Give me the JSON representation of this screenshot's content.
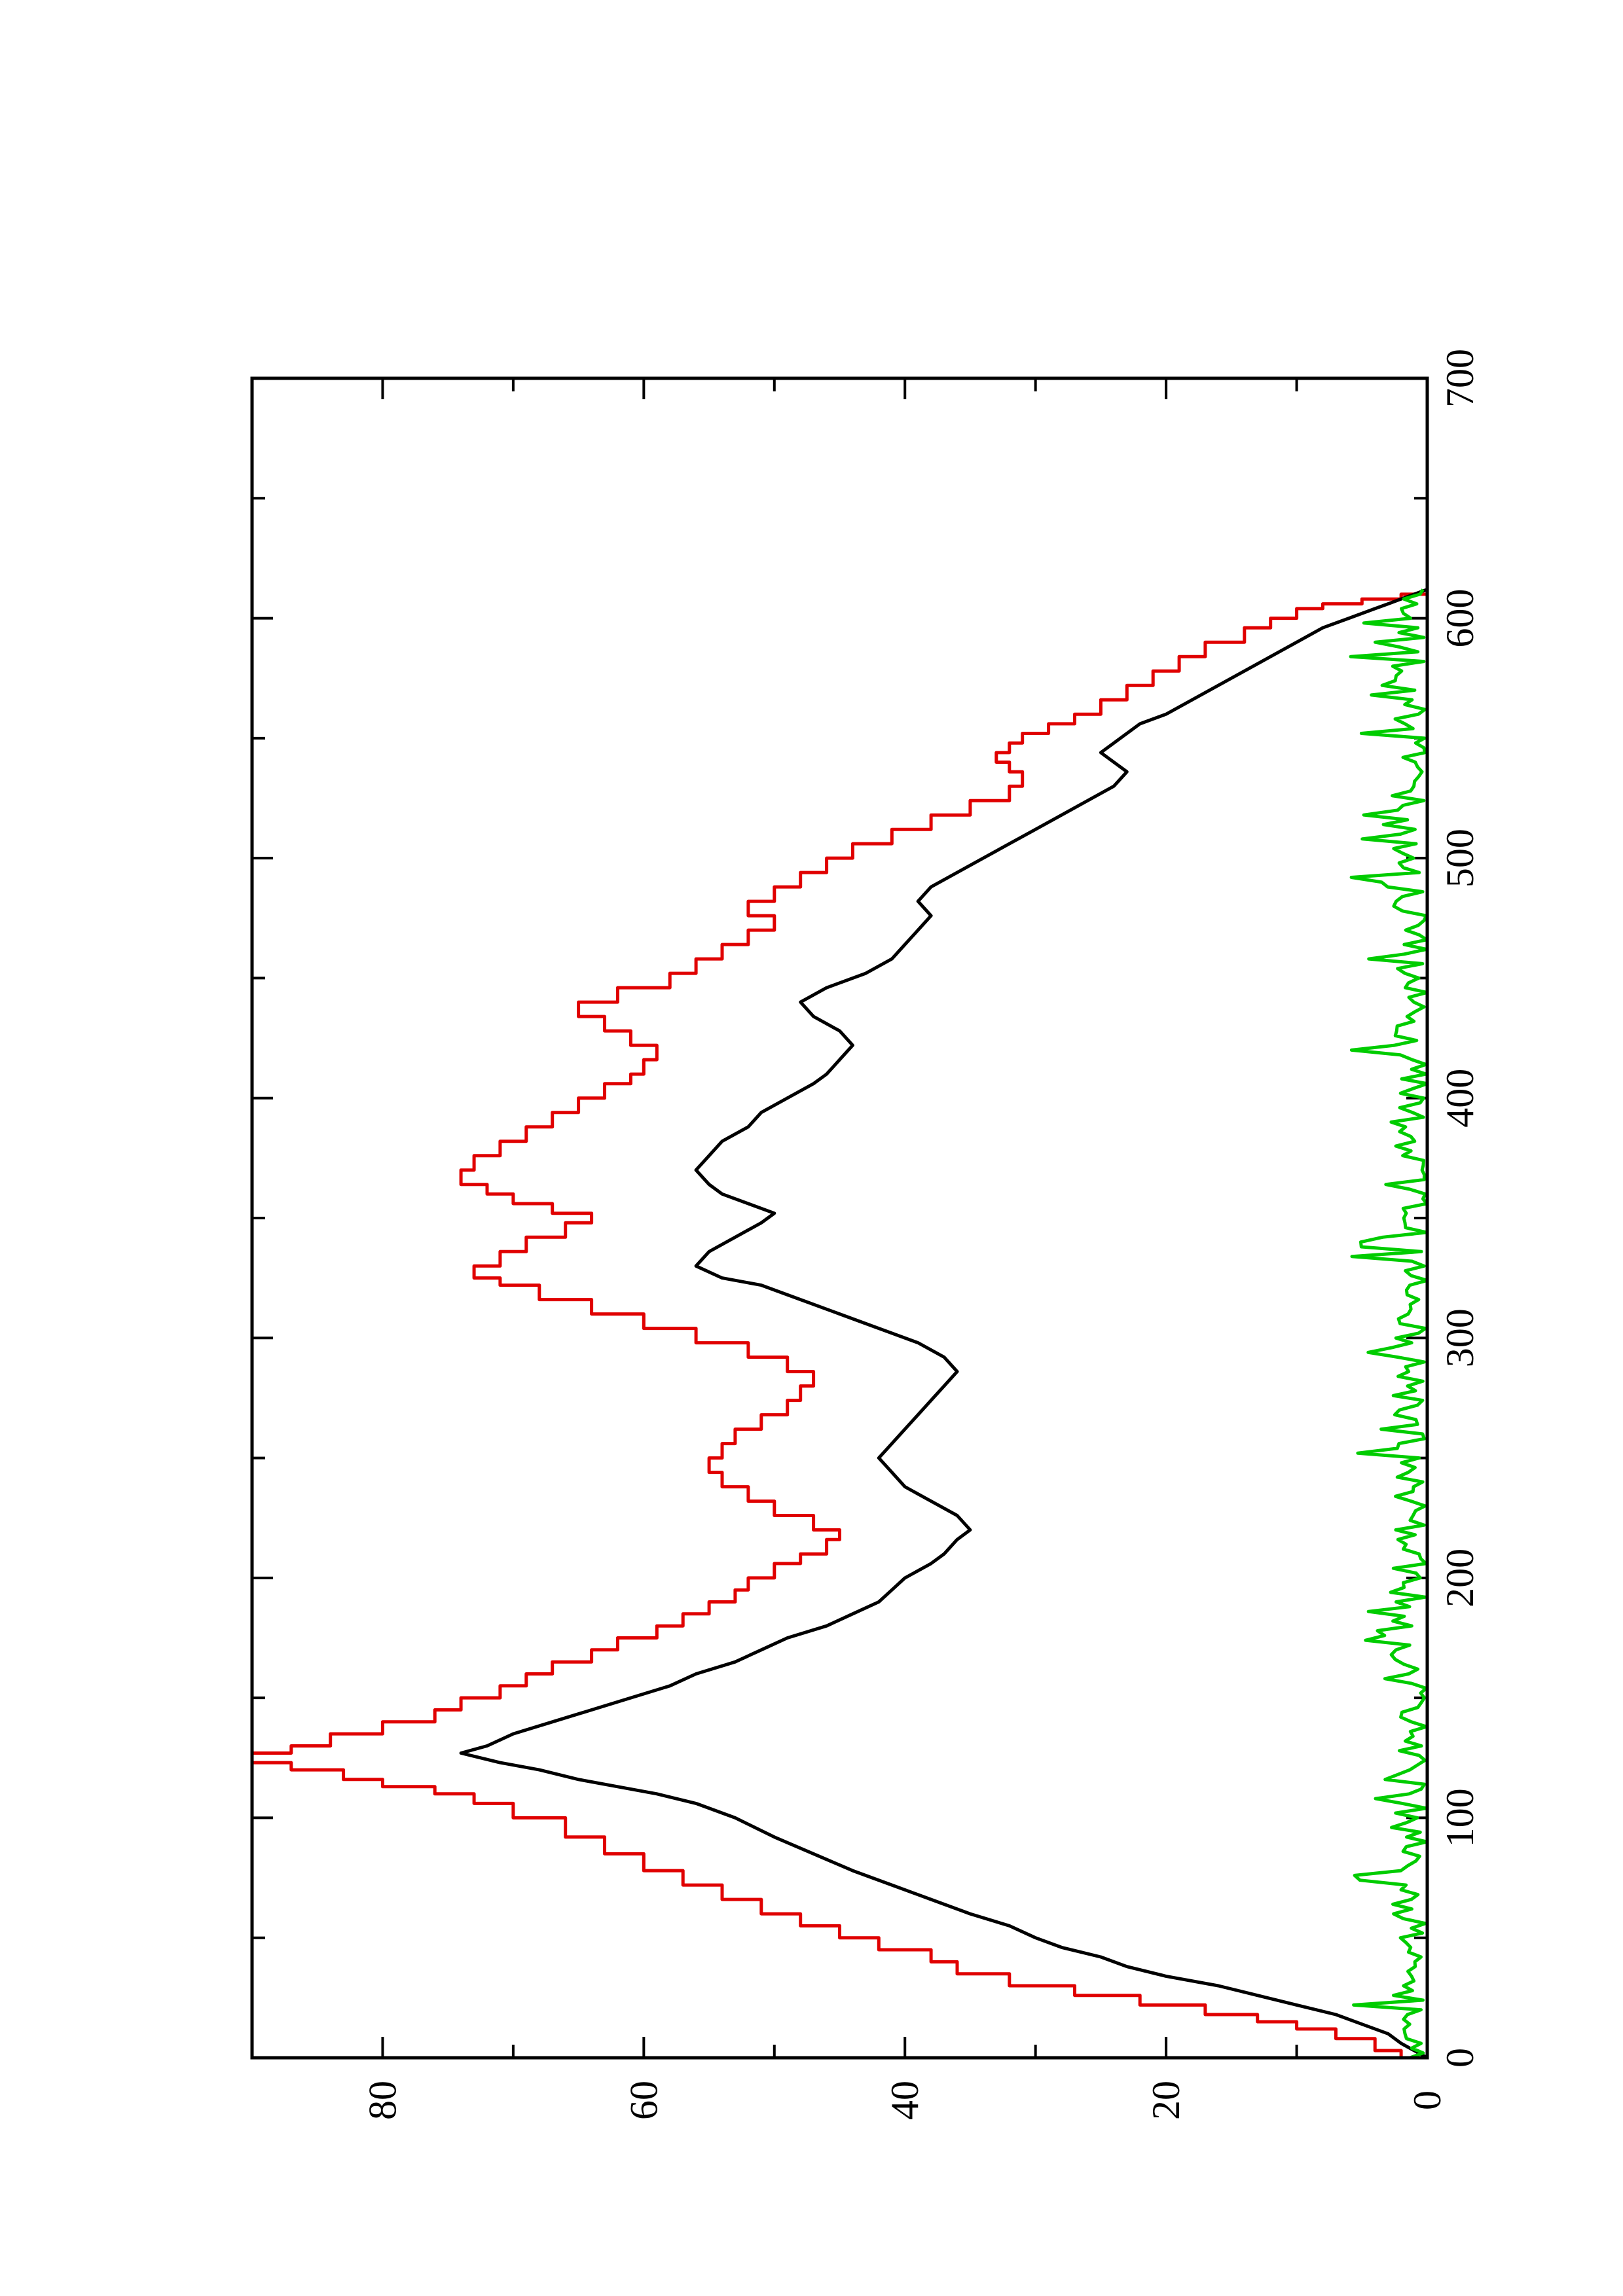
{
  "chart_data": {
    "type": "line",
    "title": "",
    "xlabel": "",
    "ylabel": "",
    "orientation": "rotated 90° counter-clockwise",
    "xlim": [
      0,
      700
    ],
    "ylim": [
      0,
      90
    ],
    "x_ticks": [
      0,
      100,
      200,
      300,
      400,
      500,
      600,
      700
    ],
    "x_tick_labels": [
      "0",
      "100",
      "200",
      "300",
      "400",
      "500",
      "600",
      "700"
    ],
    "x_minor_ticks": [
      50,
      150,
      250,
      350,
      450,
      550,
      650
    ],
    "y_ticks": [
      0,
      20,
      40,
      60,
      80
    ],
    "y_tick_labels": [
      "0",
      "20",
      "40",
      "60",
      "80"
    ],
    "y_minor_ticks": [
      10,
      30,
      50,
      70
    ],
    "grid": false,
    "series": [
      {
        "color": "#e00000",
        "step": true,
        "points": [
          [
            0,
            0
          ],
          [
            3,
            2
          ],
          [
            8,
            4
          ],
          [
            12,
            7
          ],
          [
            15,
            10
          ],
          [
            18,
            13
          ],
          [
            22,
            17
          ],
          [
            26,
            22
          ],
          [
            30,
            27
          ],
          [
            35,
            32
          ],
          [
            40,
            36
          ],
          [
            45,
            38
          ],
          [
            50,
            42
          ],
          [
            55,
            45
          ],
          [
            60,
            48
          ],
          [
            66,
            51
          ],
          [
            72,
            54
          ],
          [
            78,
            57
          ],
          [
            85,
            60
          ],
          [
            92,
            63
          ],
          [
            100,
            66
          ],
          [
            106,
            70
          ],
          [
            110,
            73
          ],
          [
            113,
            76
          ],
          [
            116,
            80
          ],
          [
            120,
            83
          ],
          [
            123,
            87
          ],
          [
            127,
            90
          ],
          [
            130,
            87
          ],
          [
            135,
            84
          ],
          [
            140,
            80
          ],
          [
            145,
            76
          ],
          [
            150,
            74
          ],
          [
            155,
            71
          ],
          [
            160,
            69
          ],
          [
            165,
            67
          ],
          [
            170,
            64
          ],
          [
            175,
            62
          ],
          [
            180,
            59
          ],
          [
            185,
            57
          ],
          [
            190,
            55
          ],
          [
            195,
            53
          ],
          [
            200,
            52
          ],
          [
            206,
            50
          ],
          [
            210,
            48
          ],
          [
            216,
            46
          ],
          [
            220,
            45
          ],
          [
            226,
            47
          ],
          [
            232,
            50
          ],
          [
            238,
            52
          ],
          [
            244,
            54
          ],
          [
            250,
            55
          ],
          [
            256,
            54
          ],
          [
            262,
            53
          ],
          [
            268,
            51
          ],
          [
            274,
            49
          ],
          [
            280,
            48
          ],
          [
            286,
            47
          ],
          [
            292,
            49
          ],
          [
            298,
            52
          ],
          [
            304,
            56
          ],
          [
            310,
            60
          ],
          [
            316,
            64
          ],
          [
            322,
            68
          ],
          [
            325,
            71
          ],
          [
            330,
            73
          ],
          [
            336,
            71
          ],
          [
            342,
            69
          ],
          [
            348,
            66
          ],
          [
            352,
            64
          ],
          [
            356,
            67
          ],
          [
            360,
            70
          ],
          [
            364,
            72
          ],
          [
            370,
            74
          ],
          [
            376,
            73
          ],
          [
            382,
            71
          ],
          [
            388,
            69
          ],
          [
            394,
            67
          ],
          [
            400,
            65
          ],
          [
            406,
            63
          ],
          [
            410,
            61
          ],
          [
            416,
            60
          ],
          [
            422,
            59
          ],
          [
            428,
            61
          ],
          [
            434,
            63
          ],
          [
            440,
            65
          ],
          [
            446,
            62
          ],
          [
            452,
            58
          ],
          [
            458,
            56
          ],
          [
            464,
            54
          ],
          [
            470,
            52
          ],
          [
            476,
            50
          ],
          [
            482,
            52
          ],
          [
            488,
            50
          ],
          [
            494,
            48
          ],
          [
            500,
            46
          ],
          [
            506,
            44
          ],
          [
            512,
            41
          ],
          [
            518,
            38
          ],
          [
            524,
            35
          ],
          [
            530,
            32
          ],
          [
            536,
            31
          ],
          [
            540,
            32
          ],
          [
            544,
            33
          ],
          [
            548,
            32
          ],
          [
            552,
            31
          ],
          [
            556,
            29
          ],
          [
            560,
            27
          ],
          [
            566,
            25
          ],
          [
            572,
            23
          ],
          [
            578,
            21
          ],
          [
            584,
            19
          ],
          [
            590,
            17
          ],
          [
            596,
            14
          ],
          [
            600,
            12
          ],
          [
            604,
            10
          ],
          [
            606,
            8
          ],
          [
            608,
            5
          ],
          [
            610,
            2
          ],
          [
            612,
            0
          ]
        ]
      },
      {
        "color": "#000000",
        "step": false,
        "points": [
          [
            0,
            0
          ],
          [
            3,
            1
          ],
          [
            6,
            2
          ],
          [
            10,
            3
          ],
          [
            14,
            5
          ],
          [
            18,
            7
          ],
          [
            22,
            10
          ],
          [
            26,
            13
          ],
          [
            30,
            16
          ],
          [
            34,
            20
          ],
          [
            38,
            23
          ],
          [
            42,
            25
          ],
          [
            46,
            28
          ],
          [
            50,
            30
          ],
          [
            55,
            32
          ],
          [
            60,
            35
          ],
          [
            66,
            38
          ],
          [
            72,
            41
          ],
          [
            78,
            44
          ],
          [
            85,
            47
          ],
          [
            92,
            50
          ],
          [
            100,
            53
          ],
          [
            106,
            56
          ],
          [
            110,
            59
          ],
          [
            113,
            62
          ],
          [
            116,
            65
          ],
          [
            120,
            68
          ],
          [
            123,
            71
          ],
          [
            127,
            74
          ],
          [
            130,
            72
          ],
          [
            135,
            70
          ],
          [
            140,
            67
          ],
          [
            145,
            64
          ],
          [
            150,
            61
          ],
          [
            155,
            58
          ],
          [
            160,
            56
          ],
          [
            165,
            53
          ],
          [
            170,
            51
          ],
          [
            175,
            49
          ],
          [
            180,
            46
          ],
          [
            185,
            44
          ],
          [
            190,
            42
          ],
          [
            195,
            41
          ],
          [
            200,
            40
          ],
          [
            206,
            38
          ],
          [
            210,
            37
          ],
          [
            216,
            36
          ],
          [
            220,
            35
          ],
          [
            226,
            36
          ],
          [
            232,
            38
          ],
          [
            238,
            40
          ],
          [
            244,
            41
          ],
          [
            250,
            42
          ],
          [
            256,
            41
          ],
          [
            262,
            40
          ],
          [
            268,
            39
          ],
          [
            274,
            38
          ],
          [
            280,
            37
          ],
          [
            286,
            36
          ],
          [
            292,
            37
          ],
          [
            298,
            39
          ],
          [
            304,
            42
          ],
          [
            310,
            45
          ],
          [
            316,
            48
          ],
          [
            322,
            51
          ],
          [
            325,
            54
          ],
          [
            330,
            56
          ],
          [
            336,
            55
          ],
          [
            342,
            53
          ],
          [
            348,
            51
          ],
          [
            352,
            50
          ],
          [
            356,
            52
          ],
          [
            360,
            54
          ],
          [
            364,
            55
          ],
          [
            370,
            56
          ],
          [
            376,
            55
          ],
          [
            382,
            54
          ],
          [
            388,
            52
          ],
          [
            394,
            51
          ],
          [
            400,
            49
          ],
          [
            406,
            47
          ],
          [
            410,
            46
          ],
          [
            416,
            45
          ],
          [
            422,
            44
          ],
          [
            428,
            45
          ],
          [
            434,
            47
          ],
          [
            440,
            48
          ],
          [
            446,
            46
          ],
          [
            452,
            43
          ],
          [
            458,
            41
          ],
          [
            464,
            40
          ],
          [
            470,
            39
          ],
          [
            476,
            38
          ],
          [
            482,
            39
          ],
          [
            488,
            38
          ],
          [
            494,
            36
          ],
          [
            500,
            34
          ],
          [
            506,
            32
          ],
          [
            512,
            30
          ],
          [
            518,
            28
          ],
          [
            524,
            26
          ],
          [
            530,
            24
          ],
          [
            536,
            23
          ],
          [
            540,
            24
          ],
          [
            544,
            25
          ],
          [
            548,
            24
          ],
          [
            552,
            23
          ],
          [
            556,
            22
          ],
          [
            560,
            20
          ],
          [
            566,
            18
          ],
          [
            572,
            16
          ],
          [
            578,
            14
          ],
          [
            584,
            12
          ],
          [
            590,
            10
          ],
          [
            596,
            8
          ],
          [
            600,
            6
          ],
          [
            604,
            4
          ],
          [
            606,
            3
          ],
          [
            608,
            2
          ],
          [
            610,
            1
          ],
          [
            612,
            0
          ]
        ]
      },
      {
        "color": "#00cc00",
        "step": false,
        "noise": true,
        "x_range": [
          0,
          612
        ],
        "y_range": [
          0,
          6
        ]
      }
    ]
  }
}
